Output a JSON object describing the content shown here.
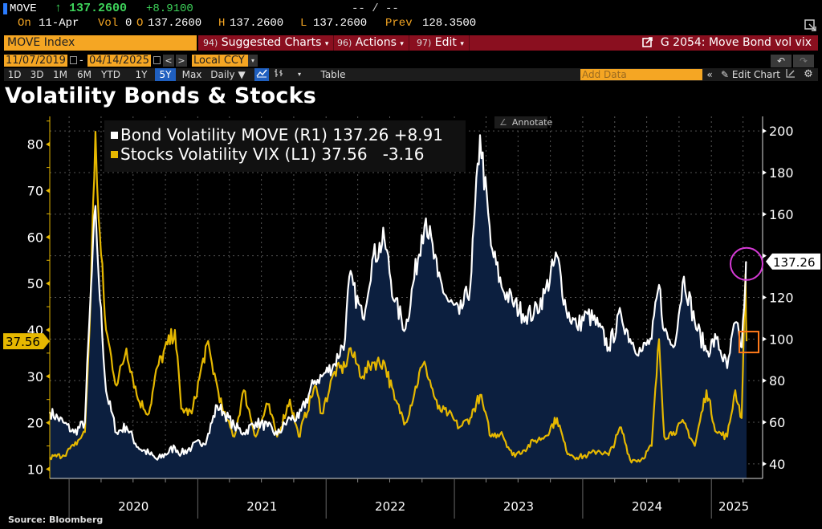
{
  "header": {
    "ticker": "MOVE",
    "last_arrow": "↑",
    "last": "137.2600",
    "change": "+8.9100",
    "bid_ask": "-- / --",
    "on_label": "On",
    "on_date": "11-Apr",
    "vol_label": "Vol",
    "vol_value": "0",
    "o_label": "O",
    "o_value": "137.2600",
    "h_label": "H",
    "h_value": "137.2600",
    "l_label": "L",
    "l_value": "137.2600",
    "prev_label": "Prev",
    "prev_value": "128.3500"
  },
  "menubar": {
    "security": "MOVE Index",
    "suggested_num": "94)",
    "suggested": "Suggested Charts",
    "actions_num": "96)",
    "actions": "Actions",
    "edit_num": "97)",
    "edit": "Edit",
    "chart_title": "G 2054: Move Bond vol vix"
  },
  "range": {
    "start_date": "11/07/2019",
    "separator": "-",
    "end_date": "04/14/2025",
    "prev": "<",
    "next": ">",
    "currency": "Local CCY"
  },
  "timeframes": [
    {
      "label": "1D",
      "active": false
    },
    {
      "label": "3D",
      "active": false
    },
    {
      "label": "1M",
      "active": false
    },
    {
      "label": "6M",
      "active": false
    },
    {
      "label": "YTD",
      "active": false
    },
    {
      "label": "1Y",
      "active": false
    },
    {
      "label": "5Y",
      "active": true
    },
    {
      "label": "Max",
      "active": false
    }
  ],
  "toolbar": {
    "frequency": "Daily ▼",
    "table": "Table",
    "add_data_placeholder": "Add Data",
    "collapse": "«",
    "edit_chart": "Edit Chart",
    "annotate": "Annotate",
    "undo": "↶",
    "redo": "↷"
  },
  "icons": {
    "popout": "popout-icon",
    "line_chart": "line-chart-icon",
    "bar_chart": "ohlc-bar-icon",
    "pencil": "pencil-icon",
    "gear": "gear-icon",
    "calendar": "calendar-icon"
  },
  "colors": {
    "move_line": "#ffffff",
    "vix_line": "#e6b800",
    "area_fill": "#0c1f3f",
    "circle_marker": "#d63ad6",
    "square_marker": "#ff7a1a",
    "accent_orange": "#f5a623",
    "menu_red": "#8a0f1f"
  },
  "source": "Source: Bloomberg",
  "chart_data": {
    "type": "line",
    "title": "Volatility Bonds & Stocks",
    "x_range": [
      "2019-11-07",
      "2025-04-14"
    ],
    "x_ticks": [
      "2020",
      "2021",
      "2022",
      "2023",
      "2024",
      "2025"
    ],
    "left_axis": {
      "label": "VIX",
      "range": [
        8,
        86
      ],
      "ticks": [
        10,
        20,
        30,
        40,
        50,
        60,
        70,
        80
      ]
    },
    "right_axis": {
      "label": "MOVE",
      "range": [
        33,
        207
      ],
      "ticks": [
        40,
        60,
        80,
        100,
        120,
        140,
        160,
        180,
        200
      ]
    },
    "grid": true,
    "legend_position": "top-left",
    "series": [
      {
        "name": "Bond Volatility MOVE",
        "axis": "R1",
        "last": "137.26",
        "change": "+8.91",
        "area": true
      },
      {
        "name": "Stocks Volatility VIX",
        "axis": "L1",
        "last": "37.56",
        "change": "-3.16",
        "area": false
      }
    ],
    "last_labels": {
      "right": "137.26",
      "left": "37.56"
    },
    "dates": [
      "2019-11-07",
      "2019-12-15",
      "2020-01-15",
      "2020-02-15",
      "2020-02-28",
      "2020-03-16",
      "2020-03-25",
      "2020-04-15",
      "2020-05-15",
      "2020-06-12",
      "2020-07-15",
      "2020-08-15",
      "2020-09-08",
      "2020-10-28",
      "2020-11-15",
      "2020-12-15",
      "2021-01-27",
      "2021-02-25",
      "2021-03-15",
      "2021-04-15",
      "2021-05-12",
      "2021-06-15",
      "2021-07-19",
      "2021-08-15",
      "2021-09-20",
      "2021-10-15",
      "2021-11-30",
      "2021-12-20",
      "2022-01-25",
      "2022-02-24",
      "2022-03-08",
      "2022-04-15",
      "2022-05-12",
      "2022-06-16",
      "2022-07-15",
      "2022-08-15",
      "2022-09-30",
      "2022-10-12",
      "2022-11-15",
      "2022-12-15",
      "2023-01-15",
      "2023-02-15",
      "2023-03-15",
      "2023-04-15",
      "2023-05-15",
      "2023-06-15",
      "2023-07-15",
      "2023-08-15",
      "2023-09-15",
      "2023-10-20",
      "2023-11-15",
      "2023-12-15",
      "2024-01-15",
      "2024-02-15",
      "2024-03-15",
      "2024-04-19",
      "2024-05-15",
      "2024-06-15",
      "2024-07-15",
      "2024-08-05",
      "2024-08-20",
      "2024-09-15",
      "2024-10-15",
      "2024-11-15",
      "2024-12-18",
      "2025-01-15",
      "2025-02-15",
      "2025-03-10",
      "2025-03-28",
      "2025-04-08",
      "2025-04-11"
    ],
    "vix": [
      12.5,
      13,
      15,
      18,
      40,
      82.7,
      64,
      40,
      28,
      36,
      25,
      22,
      32,
      40,
      23,
      22,
      37,
      28,
      22,
      17,
      27,
      17,
      24,
      17,
      25,
      17,
      28,
      22,
      31,
      32,
      36,
      30,
      33,
      33,
      25,
      20,
      32,
      32,
      23,
      22,
      19,
      21,
      26,
      17,
      18,
      13,
      14,
      16,
      17,
      21,
      14,
      12.5,
      13,
      14,
      13,
      19,
      12,
      12,
      15,
      38,
      17,
      18,
      20,
      15,
      27,
      18,
      17,
      27,
      21,
      52,
      37.56
    ],
    "move": [
      65,
      60,
      55,
      60,
      110,
      164,
      130,
      75,
      55,
      58,
      48,
      45,
      42,
      48,
      45,
      48,
      52,
      68,
      65,
      58,
      55,
      60,
      58,
      54,
      62,
      62,
      80,
      82,
      88,
      100,
      130,
      110,
      138,
      148,
      118,
      105,
      150,
      158,
      130,
      118,
      112,
      125,
      198,
      145,
      125,
      118,
      112,
      112,
      122,
      140,
      114,
      106,
      112,
      106,
      96,
      112,
      100,
      94,
      100,
      126,
      104,
      96,
      130,
      108,
      94,
      100,
      86,
      108,
      96,
      128,
      137.26
    ]
  }
}
